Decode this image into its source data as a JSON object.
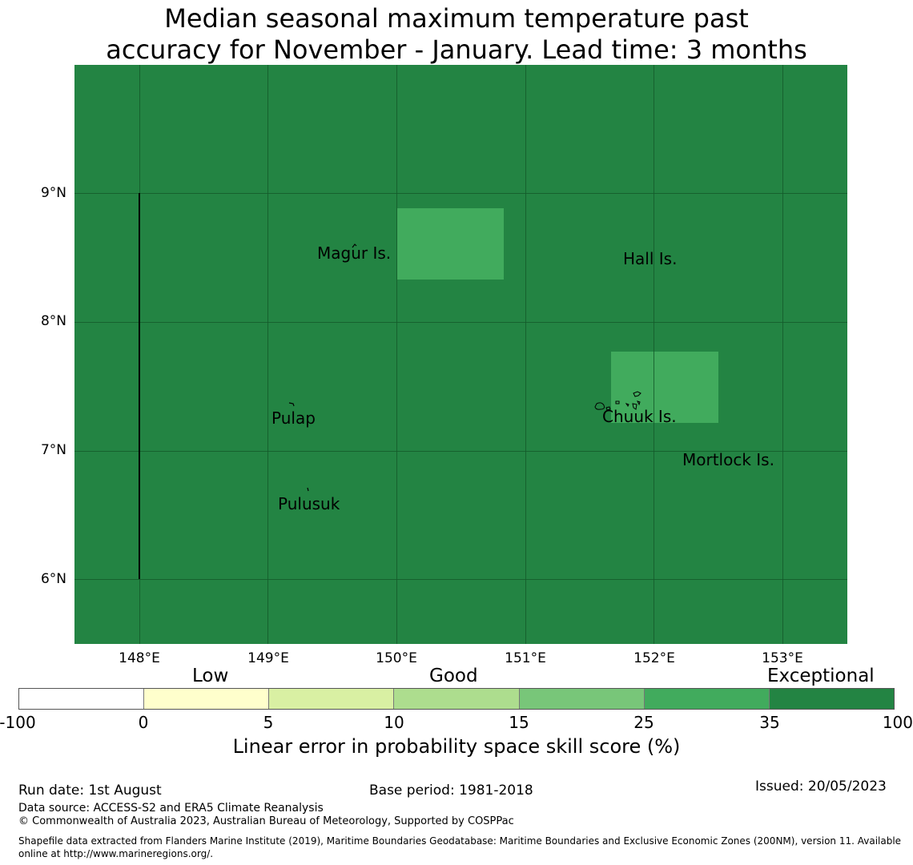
{
  "title": {
    "line1": "Median seasonal maximum temperature past",
    "line2": "accuracy for November - January. Lead time: 3 months"
  },
  "map": {
    "background_color": "#238443",
    "lat_labels": [
      "9°N",
      "8°N",
      "7°N",
      "6°N"
    ],
    "lon_labels": [
      "148°E",
      "149°E",
      "150°E",
      "151°E",
      "152°E",
      "153°E"
    ],
    "highlight_color": "#41ab5d",
    "places": [
      {
        "name": "Magur Is."
      },
      {
        "name": "Hall Is."
      },
      {
        "name": "Pulap"
      },
      {
        "name": "Chuuk Is."
      },
      {
        "name": "Mortlock Is."
      },
      {
        "name": "Pulusuk"
      }
    ]
  },
  "legend": {
    "categories": [
      "Low",
      "Good",
      "Exceptional"
    ],
    "ticks": [
      "-100",
      "0",
      "5",
      "10",
      "15",
      "25",
      "35",
      "100"
    ],
    "colors": [
      "#ffffff",
      "#ffffcc",
      "#d9f0a3",
      "#addd8e",
      "#78c679",
      "#41ab5d",
      "#238443"
    ],
    "label": "Linear error in probability space skill score (%)"
  },
  "footer": {
    "run_date": "Run date: 1st August",
    "base_period": "Base period: 1981-2018",
    "issued": "Issued: 20/05/2023",
    "data_source": "Data source: ACCESS-S2 and ERA5 Climate Reanalysis",
    "copyright": "© Commonwealth of Australia 2023, Australian Bureau of Meteorology, Supported by COSPPac",
    "shapefile": "Shapefile data extracted from Flanders Marine Institute (2019), Maritime Boundaries Geodatabase: Maritime Boundaries and Exclusive Economic Zones (200NM), version 11. Available online at http://www.marineregions.org/."
  }
}
